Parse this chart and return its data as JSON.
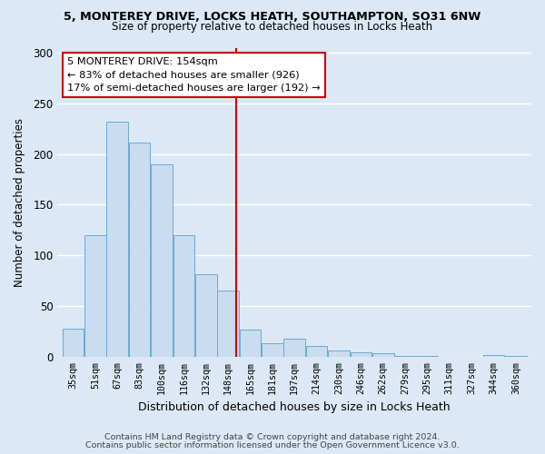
{
  "title_line1": "5, MONTEREY DRIVE, LOCKS HEATH, SOUTHAMPTON, SO31 6NW",
  "title_line2": "Size of property relative to detached houses in Locks Heath",
  "xlabel": "Distribution of detached houses by size in Locks Heath",
  "ylabel": "Number of detached properties",
  "bar_labels": [
    "35sqm",
    "51sqm",
    "67sqm",
    "83sqm",
    "100sqm",
    "116sqm",
    "132sqm",
    "148sqm",
    "165sqm",
    "181sqm",
    "197sqm",
    "214sqm",
    "230sqm",
    "246sqm",
    "262sqm",
    "279sqm",
    "295sqm",
    "311sqm",
    "327sqm",
    "344sqm",
    "360sqm"
  ],
  "bar_values": [
    28,
    120,
    232,
    211,
    190,
    120,
    81,
    65,
    27,
    13,
    18,
    11,
    6,
    4,
    3,
    1,
    1,
    0,
    0,
    2,
    1
  ],
  "bar_color": "#c9dcf0",
  "bar_edge_color": "#6aaad4",
  "vline_color": "#cc0000",
  "annotation_title": "5 MONTEREY DRIVE: 154sqm",
  "annotation_line1": "← 83% of detached houses are smaller (926)",
  "annotation_line2": "17% of semi-detached houses are larger (192) →",
  "annotation_box_color": "#ffffff",
  "annotation_box_edge": "#cc0000",
  "ylim": [
    0,
    305
  ],
  "yticks": [
    0,
    50,
    100,
    150,
    200,
    250,
    300
  ],
  "footer_line1": "Contains HM Land Registry data © Crown copyright and database right 2024.",
  "footer_line2": "Contains public sector information licensed under the Open Government Licence v3.0.",
  "background_color": "#dce8f5",
  "plot_background": "#dce8f5"
}
